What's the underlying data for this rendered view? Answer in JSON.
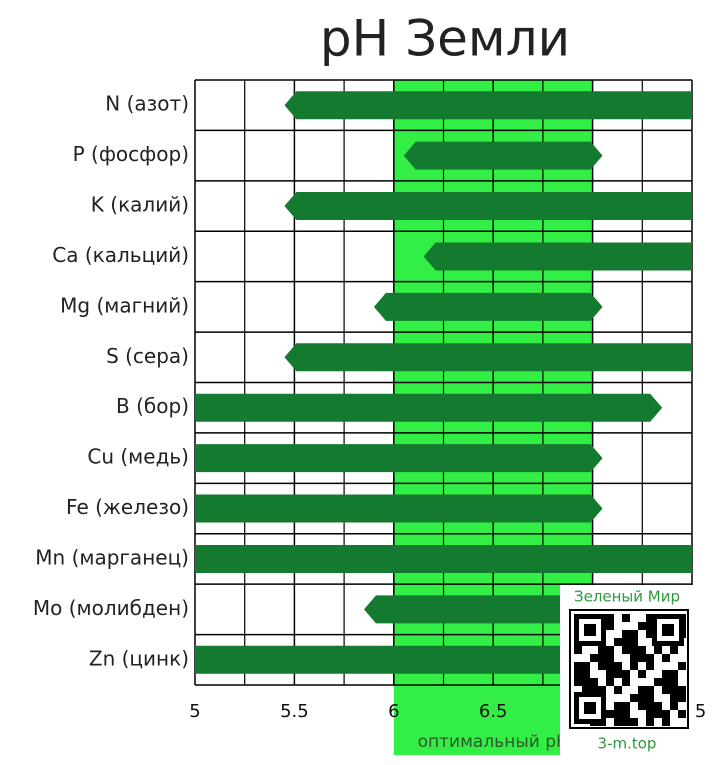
{
  "chart_data": {
    "type": "range-bar",
    "title": "pH  Земли",
    "categories": [
      "N (азот)",
      "P (фосфор)",
      "K (калий)",
      "Ca (кальций)",
      "Mg (магний)",
      "S (сера)",
      "B (бор)",
      "Cu (медь)",
      "Fe (железо)",
      "Mn (марганец)",
      "Mo (молибден)",
      "Zn (цинк)"
    ],
    "values": [
      [
        5.45,
        7.5
      ],
      [
        6.05,
        7.05
      ],
      [
        5.45,
        7.5
      ],
      [
        6.15,
        7.5
      ],
      [
        5.9,
        7.05
      ],
      [
        5.45,
        7.5
      ],
      [
        5,
        7.35
      ],
      [
        5,
        7.05
      ],
      [
        5,
        7.05
      ],
      [
        5,
        7.5
      ],
      [
        5.85,
        7.5
      ],
      [
        5,
        7.5
      ]
    ],
    "color": "#137a2f",
    "xlim": [
      5,
      7.5
    ],
    "xticks": [
      5,
      5.5,
      6,
      6.5,
      7,
      7.5
    ],
    "grid": true,
    "optimal_range": [
      6,
      7
    ],
    "optimal_color": "#33ee44",
    "optimal_label": "оптимальный pH"
  },
  "watermark": {
    "title": "Зеленый Мир",
    "url": "3-m.top"
  }
}
